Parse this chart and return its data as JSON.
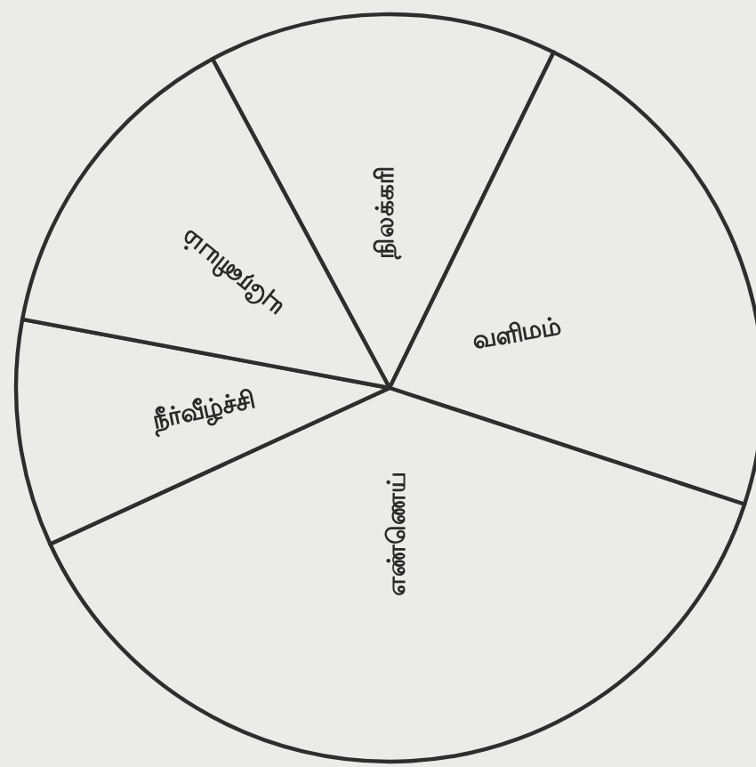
{
  "chart_data": {
    "type": "pie",
    "categories": [
      "நிலக்கரி",
      "வளிமம்",
      "எண்ணெய்",
      "நீர்வீழ்ச்சி",
      "யுரேனியம்"
    ],
    "values": [
      15.1,
      22.8,
      38.1,
      9.8,
      14.2
    ],
    "colors": [
      "#ebebe8",
      "#ebebe8",
      "#ebebe8",
      "#ebebe8",
      "#ebebe8"
    ]
  }
}
